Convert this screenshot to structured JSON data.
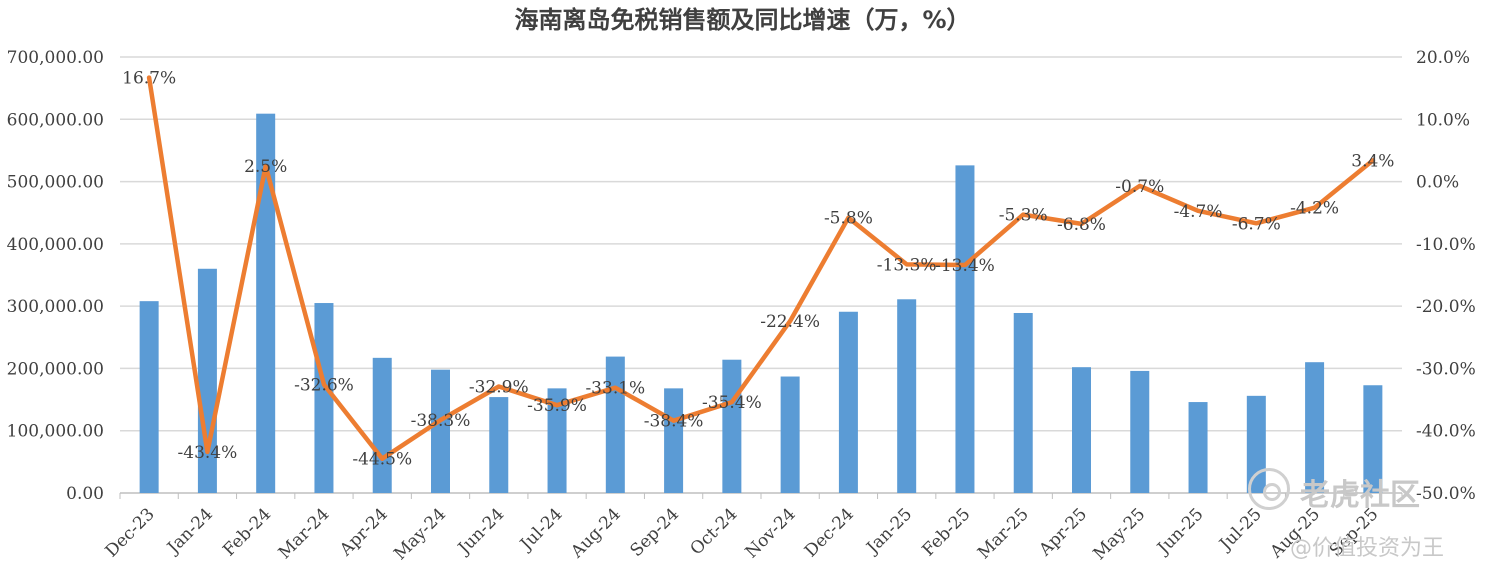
{
  "chart_data": {
    "type": "bar+line",
    "title": "海南离岛免税销售额及同比增速（万，%）",
    "categories": [
      "Dec-23",
      "Jan-24",
      "Feb-24",
      "Mar-24",
      "Apr-24",
      "May-24",
      "Jun-24",
      "Jul-24",
      "Aug-24",
      "Sep-24",
      "Oct-24",
      "Nov-24",
      "Dec-24",
      "Jan-25",
      "Feb-25",
      "Mar-25",
      "Apr-25",
      "May-25",
      "Jun-25",
      "Jul-25",
      "Aug-25",
      "Sep-25"
    ],
    "series": [
      {
        "kind": "bar",
        "axis": "left",
        "color": "#5B9BD5",
        "values": [
          308000,
          360000,
          609000,
          305000,
          217000,
          198000,
          154000,
          168000,
          219000,
          168000,
          214000,
          187000,
          291000,
          311000,
          526000,
          289000,
          202000,
          196000,
          146000,
          156000,
          210000,
          173000
        ]
      },
      {
        "kind": "line",
        "axis": "right",
        "color": "#ED7D31",
        "values": [
          16.7,
          -43.4,
          2.5,
          -32.6,
          -44.5,
          -38.3,
          -32.9,
          -35.9,
          -33.1,
          -38.4,
          -35.4,
          -22.4,
          -5.8,
          -13.3,
          -13.4,
          -5.3,
          -6.8,
          -0.7,
          -4.7,
          -6.7,
          -4.2,
          3.4
        ],
        "labels": [
          "16.7%",
          "-43.4%",
          "2.5%",
          "-32.6%",
          "-44.5%",
          "-38.3%",
          "-32.9%",
          "-35.9%",
          "-33.1%",
          "-38.4%",
          "-35.4%",
          "-22.4%",
          "-5.8%",
          "-13.3%",
          "-13.4%",
          "-5.3%",
          "-6.8%",
          "-0.7%",
          "-4.7%",
          "-6.7%",
          "-4.2%",
          "3.4%"
        ]
      }
    ],
    "y_left": {
      "min": 0,
      "max": 700000,
      "ticks": [
        "0.00",
        "100,000.00",
        "200,000.00",
        "300,000.00",
        "400,000.00",
        "500,000.00",
        "600,000.00",
        "700,000.00"
      ]
    },
    "y_right": {
      "min": -50,
      "max": 20,
      "ticks": [
        "-50.0%",
        "-40.0%",
        "-30.0%",
        "-20.0%",
        "-10.0%",
        "0.0%",
        "10.0%",
        "20.0%"
      ]
    },
    "grid": true,
    "legend": "none"
  },
  "watermark": {
    "brand": "老虎社区",
    "author": "@价值投资为王"
  }
}
